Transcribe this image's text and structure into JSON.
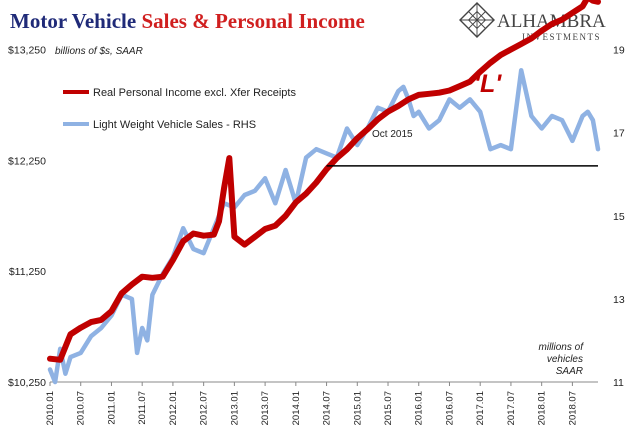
{
  "title_part1": "Motor Vehicle ",
  "title_part2": "Sales & Personal Income",
  "colors": {
    "title1": "#1f2a78",
    "title2": "#d01f1f",
    "income": "#c00000",
    "sales": "#8fb2e3",
    "ref": "#000000"
  },
  "brand": {
    "name": "ALHAMBRA",
    "sub": "INVESTMENTS",
    "icon": "diamond-lattice-logo-icon"
  },
  "annotations": {
    "l": "'L'",
    "oct": "Oct 2015",
    "left_unit": "billions of $s, SAAR",
    "right_unit": [
      "millions of",
      "vehicles",
      "SAAR"
    ]
  },
  "chart_data": {
    "type": "line",
    "title": "Motor Vehicle Sales & Personal Income",
    "x_labels": [
      "2010.01",
      "2010.07",
      "2011.01",
      "2011.07",
      "2012.01",
      "2012.07",
      "2013.01",
      "2013.07",
      "2014.01",
      "2014.07",
      "2015.01",
      "2015.07",
      "2016.01",
      "2016.07",
      "2017.01",
      "2017.07",
      "2018.01",
      "2018.07"
    ],
    "x_start": "2010-01",
    "x_end": "2018-12",
    "y_left": {
      "ticks": [
        "$10,250",
        "$11,250",
        "$12,250",
        "$13,250"
      ],
      "min": 10250,
      "max": 13250,
      "label": "billions of $s, SAAR"
    },
    "y_right": {
      "ticks": [
        "11",
        "13",
        "15",
        "17",
        "19"
      ],
      "min": 11,
      "max": 19,
      "label": "millions of vehicles SAAR"
    },
    "reference_line": {
      "axis": "left",
      "value": 12200,
      "from": "2014-07",
      "to": "2018-12"
    },
    "series": [
      {
        "name": "Real Personal Income excl. Xfer Receipts",
        "axis": "left",
        "values": [
          [
            [
              "2010-01",
              10460
            ],
            [
              "2010-03",
              10450
            ],
            [
              "2010-05",
              10680
            ],
            [
              "2010-07",
              10740
            ],
            [
              "2010-09",
              10790
            ],
            [
              "2010-11",
              10810
            ],
            [
              "2011-01",
              10890
            ],
            [
              "2011-03",
              11050
            ],
            [
              "2011-05",
              11130
            ],
            [
              "2011-07",
              11200
            ],
            [
              "2011-09",
              11190
            ],
            [
              "2011-11",
              11200
            ],
            [
              "2012-01",
              11350
            ],
            [
              "2012-03",
              11520
            ],
            [
              "2012-05",
              11590
            ],
            [
              "2012-07",
              11570
            ],
            [
              "2012-09",
              11580
            ],
            [
              "2012-10",
              11700
            ],
            [
              "2012-11",
              12000
            ],
            [
              "2012-12",
              12270
            ],
            [
              "2013-01",
              11560
            ],
            [
              "2013-03",
              11490
            ],
            [
              "2013-05",
              11560
            ],
            [
              "2013-07",
              11630
            ],
            [
              "2013-09",
              11660
            ],
            [
              "2013-11",
              11750
            ],
            [
              "2014-01",
              11870
            ],
            [
              "2014-03",
              11950
            ],
            [
              "2014-05",
              12050
            ],
            [
              "2014-07",
              12170
            ],
            [
              "2014-09",
              12270
            ],
            [
              "2014-11",
              12350
            ],
            [
              "2015-01",
              12450
            ],
            [
              "2015-03",
              12530
            ],
            [
              "2015-05",
              12620
            ],
            [
              "2015-07",
              12690
            ],
            [
              "2015-09",
              12740
            ],
            [
              "2015-11",
              12800
            ],
            [
              "2016-01",
              12840
            ],
            [
              "2016-03",
              12850
            ],
            [
              "2016-05",
              12860
            ],
            [
              "2016-07",
              12880
            ],
            [
              "2016-09",
              12920
            ],
            [
              "2016-11",
              12960
            ],
            [
              "2017-01",
              13050
            ],
            [
              "2017-03",
              13130
            ],
            [
              "2017-05",
              13200
            ],
            [
              "2017-07",
              13250
            ],
            [
              "2017-09",
              13300
            ],
            [
              "2017-11",
              13350
            ],
            [
              "2018-01",
              13420
            ],
            [
              "2018-03",
              13480
            ],
            [
              "2018-05",
              13520
            ],
            [
              "2018-07",
              13580
            ],
            [
              "2018-09",
              13640
            ],
            [
              "2018-10",
              13720
            ],
            [
              "2018-11",
              13690
            ],
            [
              "2018-12",
              13680
            ]
          ]
        ]
      },
      {
        "name": "Light Weight Vehicle Sales - RHS",
        "axis": "right",
        "values": [
          [
            [
              "2010-01",
              11.3
            ],
            [
              "2010-02",
              11.0
            ],
            [
              "2010-03",
              11.8
            ],
            [
              "2010-04",
              11.2
            ],
            [
              "2010-05",
              11.6
            ],
            [
              "2010-07",
              11.7
            ],
            [
              "2010-09",
              12.1
            ],
            [
              "2010-11",
              12.3
            ],
            [
              "2011-01",
              12.6
            ],
            [
              "2011-03",
              13.1
            ],
            [
              "2011-05",
              13.0
            ],
            [
              "2011-06",
              11.7
            ],
            [
              "2011-07",
              12.3
            ],
            [
              "2011-08",
              12.0
            ],
            [
              "2011-09",
              13.1
            ],
            [
              "2011-11",
              13.6
            ],
            [
              "2012-01",
              14.0
            ],
            [
              "2012-03",
              14.7
            ],
            [
              "2012-05",
              14.2
            ],
            [
              "2012-07",
              14.1
            ],
            [
              "2012-09",
              14.7
            ],
            [
              "2012-11",
              15.3
            ],
            [
              "2013-01",
              15.2
            ],
            [
              "2013-03",
              15.5
            ],
            [
              "2013-05",
              15.6
            ],
            [
              "2013-07",
              15.9
            ],
            [
              "2013-09",
              15.3
            ],
            [
              "2013-11",
              16.1
            ],
            [
              "2014-01",
              15.3
            ],
            [
              "2014-03",
              16.4
            ],
            [
              "2014-05",
              16.6
            ],
            [
              "2014-07",
              16.5
            ],
            [
              "2014-09",
              16.4
            ],
            [
              "2014-11",
              17.1
            ],
            [
              "2015-01",
              16.7
            ],
            [
              "2015-03",
              17.1
            ],
            [
              "2015-05",
              17.6
            ],
            [
              "2015-07",
              17.5
            ],
            [
              "2015-09",
              18.0
            ],
            [
              "2015-10",
              18.1
            ],
            [
              "2015-11",
              17.8
            ],
            [
              "2015-12",
              17.4
            ],
            [
              "2016-01",
              17.5
            ],
            [
              "2016-03",
              17.1
            ],
            [
              "2016-05",
              17.3
            ],
            [
              "2016-07",
              17.8
            ],
            [
              "2016-09",
              17.6
            ],
            [
              "2016-11",
              17.8
            ],
            [
              "2017-01",
              17.5
            ],
            [
              "2017-03",
              16.6
            ],
            [
              "2017-05",
              16.7
            ],
            [
              "2017-07",
              16.6
            ],
            [
              "2017-09",
              18.5
            ],
            [
              "2017-11",
              17.4
            ],
            [
              "2018-01",
              17.1
            ],
            [
              "2018-03",
              17.4
            ],
            [
              "2018-05",
              17.3
            ],
            [
              "2018-07",
              16.8
            ],
            [
              "2018-09",
              17.4
            ],
            [
              "2018-10",
              17.5
            ],
            [
              "2018-11",
              17.3
            ],
            [
              "2018-12",
              16.6
            ]
          ]
        ]
      }
    ],
    "legend": "top-left"
  }
}
